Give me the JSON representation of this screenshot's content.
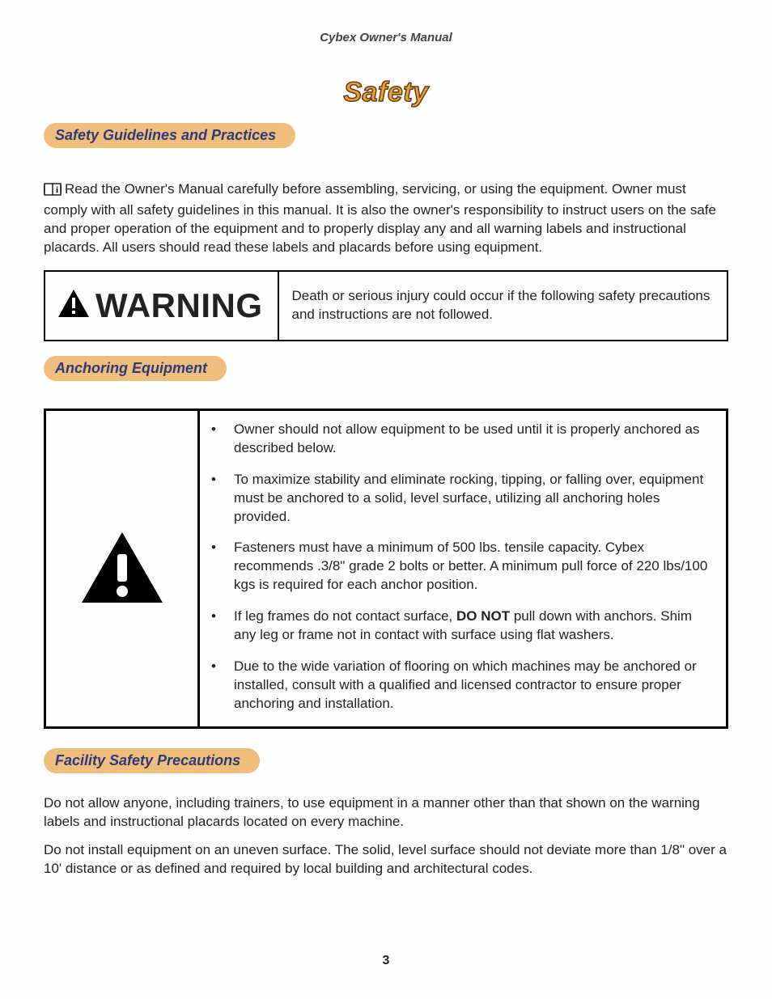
{
  "header": {
    "title": "Cybex Owner's Manual"
  },
  "page": {
    "title": "Safety",
    "number": "3"
  },
  "sections": {
    "guidelines": {
      "heading": "Safety Guidelines and Practices",
      "intro": "Read the Owner's Manual carefully before assembling, servicing, or using the equipment. Owner must comply with all safety guidelines in this manual. It is also the owner's responsibility to instruct users on the safe and proper operation of the equipment and to properly display any and all warning labels and instructional placards. All users should read these labels and placards before using equipment."
    },
    "warning": {
      "label": "WARNING",
      "text": "Death or serious injury could occur if the following safety precautions and instructions are not followed."
    },
    "anchoring": {
      "heading": "Anchoring Equipment",
      "bullets": [
        "Owner should not allow equipment to be used until it is properly anchored as described below.",
        "To maximize stability and eliminate rocking, tipping, or falling over, equipment must be anchored to a solid, level surface, utilizing all anchoring holes provided.",
        "Fasteners must have a minimum of 500 lbs. tensile capacity. Cybex recommends .3/8\" grade 2 bolts or better. A minimum pull force of 220 lbs/100 kgs is required for each anchor position.",
        "If leg frames do not contact surface, |DO NOT| pull down with anchors. Shim any leg or frame not in contact with surface using flat washers.",
        "Due to the wide variation of flooring on which machines may be anchored or installed, consult with a qualified and licensed contractor to ensure proper anchoring and installation."
      ]
    },
    "facility": {
      "heading": "Facility Safety Precautions",
      "paras": [
        "Do not allow anyone, including trainers, to use equipment in a manner other than that shown on the warning labels and instructional placards located on every machine.",
        "Do not install equipment on an uneven surface. The solid, level surface should not deviate more than 1/8\" over a 10' distance or as defined and required by local building and architectural codes."
      ]
    }
  },
  "colors": {
    "pill_bg": "#f0be7a",
    "pill_text": "#2a3a7a",
    "title_fill": "#e8a23a",
    "title_stroke": "#6b3a10",
    "body_text": "#222222",
    "border": "#000000",
    "background": "#fefefe"
  },
  "typography": {
    "body_fontsize": 17,
    "header_fontsize": 15,
    "title_fontsize": 34,
    "pill_fontsize": 18,
    "warning_fontsize": 42,
    "font_family": "Arial"
  }
}
